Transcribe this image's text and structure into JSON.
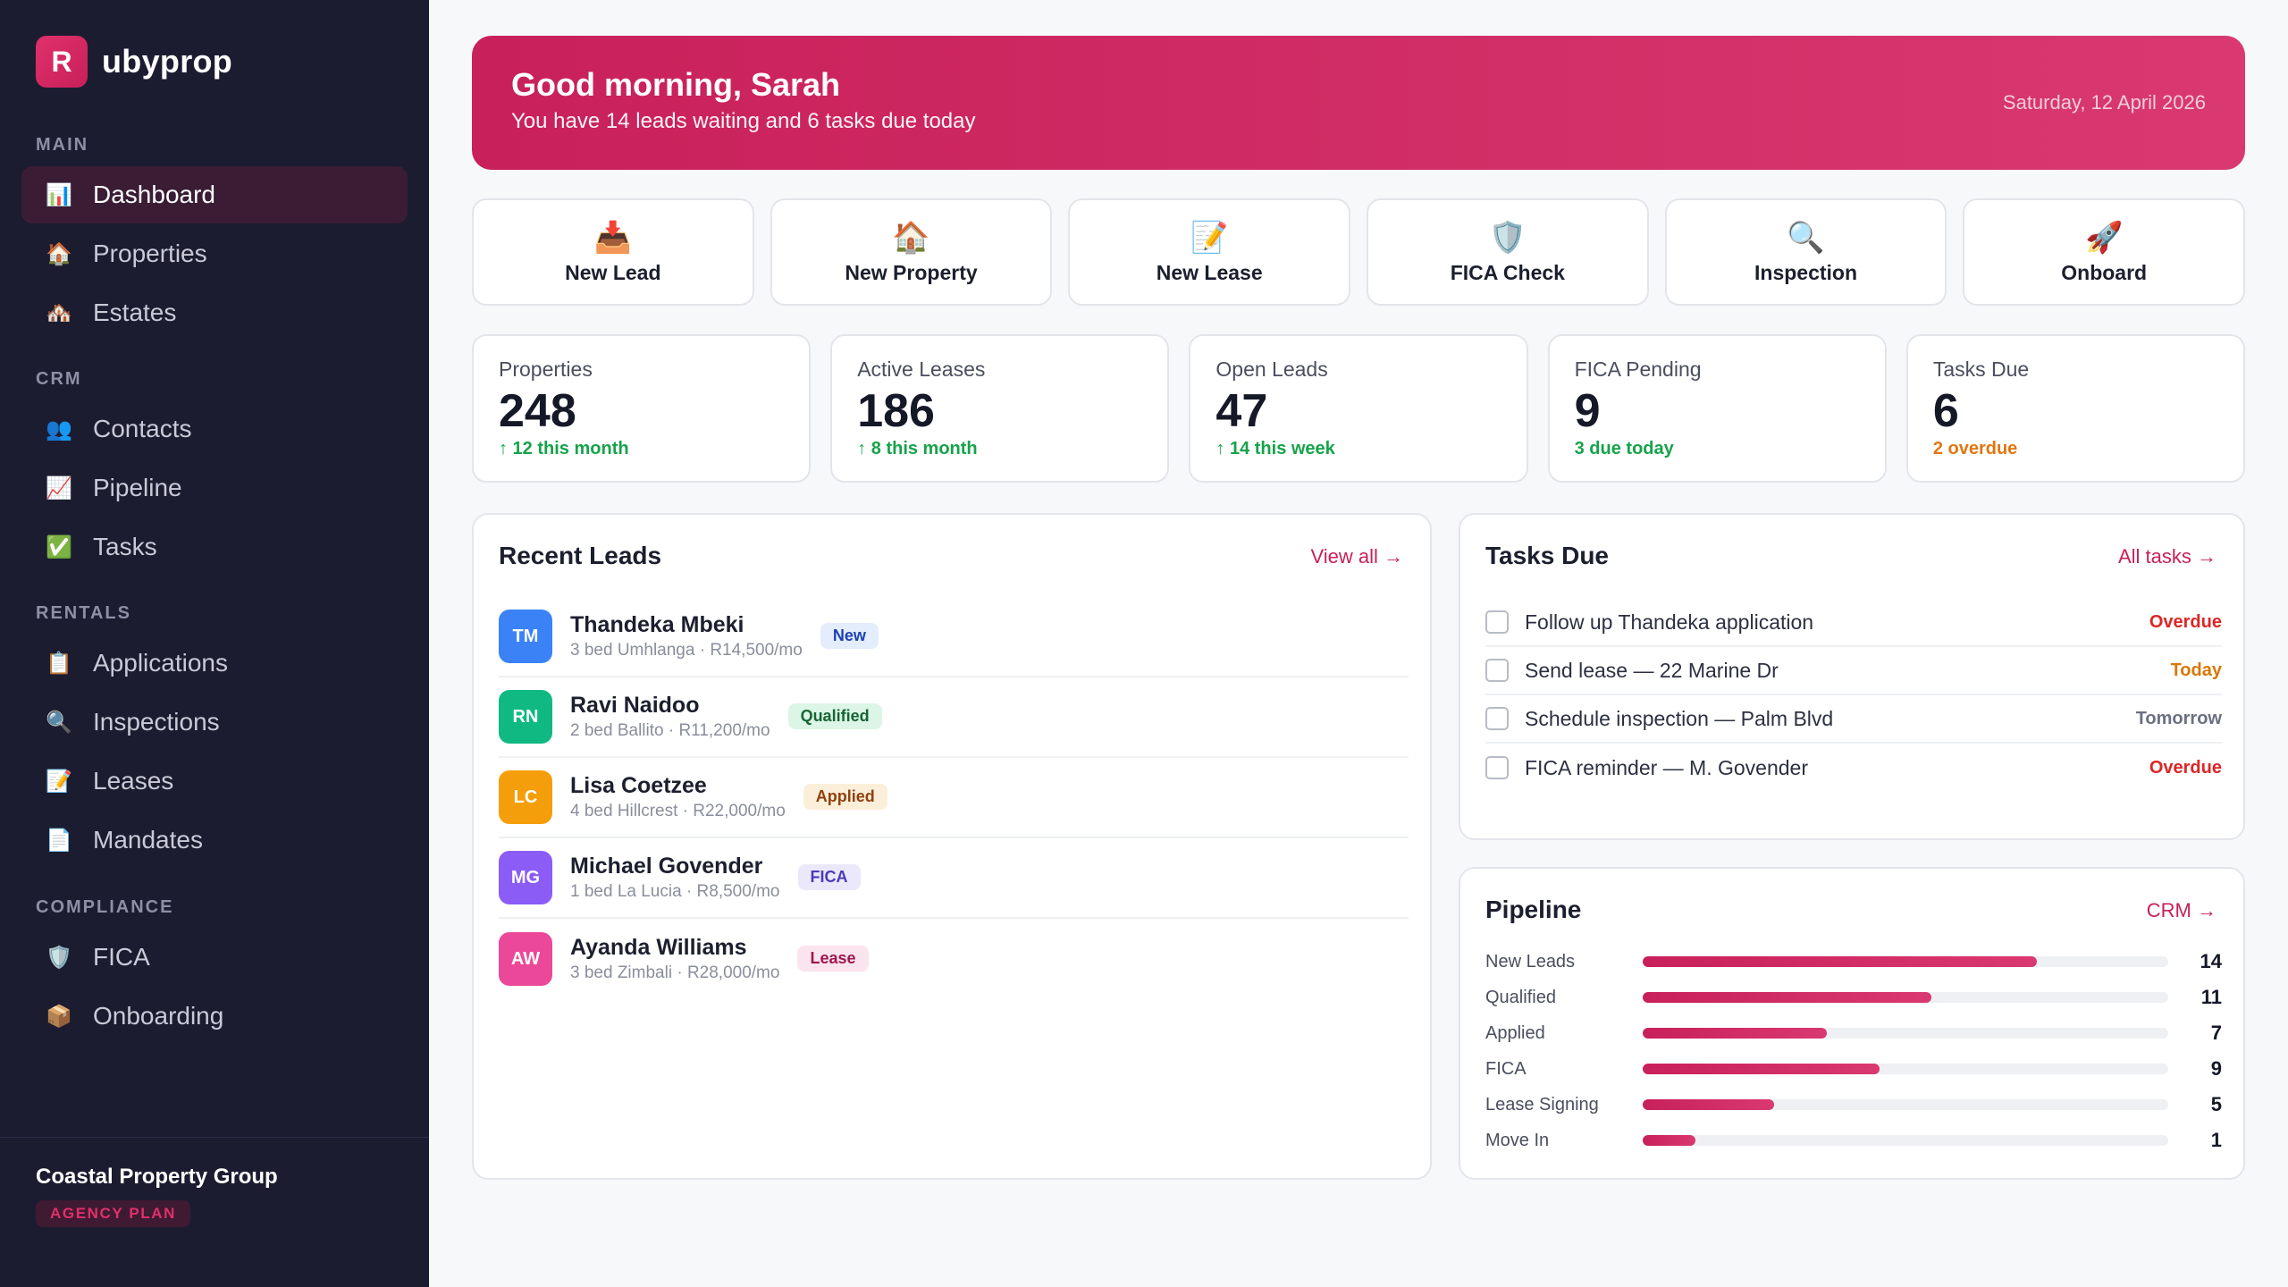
{
  "brand": {
    "logo_letter": "R",
    "name": "ubyprop"
  },
  "sidebar": {
    "sections": [
      {
        "heading": "MAIN",
        "items": [
          {
            "label": "Dashboard",
            "icon": "📊",
            "icon_name": "bar-chart-icon",
            "active": true
          },
          {
            "label": "Properties",
            "icon": "🏠",
            "icon_name": "house-icon"
          },
          {
            "label": "Estates",
            "icon": "🏘️",
            "icon_name": "houses-icon"
          }
        ]
      },
      {
        "heading": "CRM",
        "items": [
          {
            "label": "Contacts",
            "icon": "👥",
            "icon_name": "people-icon"
          },
          {
            "label": "Pipeline",
            "icon": "📈",
            "icon_name": "trend-chart-icon"
          },
          {
            "label": "Tasks",
            "icon": "✅",
            "icon_name": "check-icon"
          }
        ]
      },
      {
        "heading": "RENTALS",
        "items": [
          {
            "label": "Applications",
            "icon": "📋",
            "icon_name": "clipboard-icon"
          },
          {
            "label": "Inspections",
            "icon": "🔍",
            "icon_name": "magnifier-icon"
          },
          {
            "label": "Leases",
            "icon": "📝",
            "icon_name": "memo-icon"
          },
          {
            "label": "Mandates",
            "icon": "📄",
            "icon_name": "document-icon"
          }
        ]
      },
      {
        "heading": "COMPLIANCE",
        "items": [
          {
            "label": "FICA",
            "icon": "🛡️",
            "icon_name": "shield-icon"
          },
          {
            "label": "Onboarding",
            "icon": "📦",
            "icon_name": "package-icon"
          }
        ]
      }
    ],
    "footer": {
      "org_name": "Coastal Property Group",
      "plan": "AGENCY PLAN"
    }
  },
  "hero": {
    "greeting": "Good morning, Sarah",
    "subtitle": "You have 14 leads waiting and 6 tasks due today",
    "date": "Saturday, 12 April 2026"
  },
  "quick_actions": [
    {
      "label": "New Lead",
      "icon": "📥",
      "icon_name": "inbox-tray-icon"
    },
    {
      "label": "New Property",
      "icon": "🏠",
      "icon_name": "house-icon"
    },
    {
      "label": "New Lease",
      "icon": "📝",
      "icon_name": "memo-icon"
    },
    {
      "label": "FICA Check",
      "icon": "🛡️",
      "icon_name": "shield-icon"
    },
    {
      "label": "Inspection",
      "icon": "🔍",
      "icon_name": "magnifier-icon"
    },
    {
      "label": "Onboard",
      "icon": "🚀",
      "icon_name": "rocket-icon"
    }
  ],
  "stats": [
    {
      "label": "Properties",
      "value": "248",
      "delta": "↑ 12 this month",
      "tone": "green"
    },
    {
      "label": "Active Leases",
      "value": "186",
      "delta": "↑ 8 this month",
      "tone": "green"
    },
    {
      "label": "Open Leads",
      "value": "47",
      "delta": "↑ 14 this week",
      "tone": "green"
    },
    {
      "label": "FICA Pending",
      "value": "9",
      "delta": "3 due today",
      "tone": "green"
    },
    {
      "label": "Tasks Due",
      "value": "6",
      "delta": "2 overdue",
      "tone": "orange"
    }
  ],
  "recent_leads": {
    "title": "Recent Leads",
    "link": "View all →",
    "rows": [
      {
        "initials": "TM",
        "avatar_color": "#3b82f6",
        "name": "Thandeka Mbeki",
        "meta": "3 bed Umhlanga · R14,500/mo",
        "badge": "New",
        "badge_bg": "#e3edfc",
        "badge_fg": "#1e40af"
      },
      {
        "initials": "RN",
        "avatar_color": "#10b981",
        "name": "Ravi Naidoo",
        "meta": "2 bed Ballito · R11,200/mo",
        "badge": "Qualified",
        "badge_bg": "#dcf5e6",
        "badge_fg": "#166534"
      },
      {
        "initials": "LC",
        "avatar_color": "#f59e0b",
        "name": "Lisa Coetzee",
        "meta": "4 bed Hillcrest · R22,000/mo",
        "badge": "Applied",
        "badge_bg": "#fcefd9",
        "badge_fg": "#92400e"
      },
      {
        "initials": "MG",
        "avatar_color": "#8b5cf6",
        "name": "Michael Govender",
        "meta": "1 bed La Lucia · R8,500/mo",
        "badge": "FICA",
        "badge_bg": "#ebe8fb",
        "badge_fg": "#4c3ab5"
      },
      {
        "initials": "AW",
        "avatar_color": "#ec4899",
        "name": "Ayanda Williams",
        "meta": "3 bed Zimbali · R28,000/mo",
        "badge": "Lease",
        "badge_bg": "#fbe4ee",
        "badge_fg": "#9d174d"
      }
    ]
  },
  "tasks_due": {
    "title": "Tasks Due",
    "link": "All tasks →",
    "rows": [
      {
        "label": "Follow up Thandeka application",
        "due": "Overdue",
        "due_color": "#dc2626"
      },
      {
        "label": "Send lease — 22 Marine Dr",
        "due": "Today",
        "due_color": "#d97706"
      },
      {
        "label": "Schedule inspection — Palm Blvd",
        "due": "Tomorrow",
        "due_color": "#6b7080"
      },
      {
        "label": "FICA reminder — M. Govender",
        "due": "Overdue",
        "due_color": "#dc2626"
      }
    ]
  },
  "pipeline": {
    "title": "Pipeline",
    "link": "CRM →",
    "stages": [
      {
        "label": "New Leads",
        "count": 14,
        "fill_fraction": 0.75
      },
      {
        "label": "Qualified",
        "count": 11,
        "fill_fraction": 0.55
      },
      {
        "label": "Applied",
        "count": 7,
        "fill_fraction": 0.35
      },
      {
        "label": "FICA",
        "count": 9,
        "fill_fraction": 0.45
      },
      {
        "label": "Lease Signing",
        "count": 5,
        "fill_fraction": 0.25
      },
      {
        "label": "Move In",
        "count": 1,
        "fill_fraction": 0.1
      }
    ]
  }
}
